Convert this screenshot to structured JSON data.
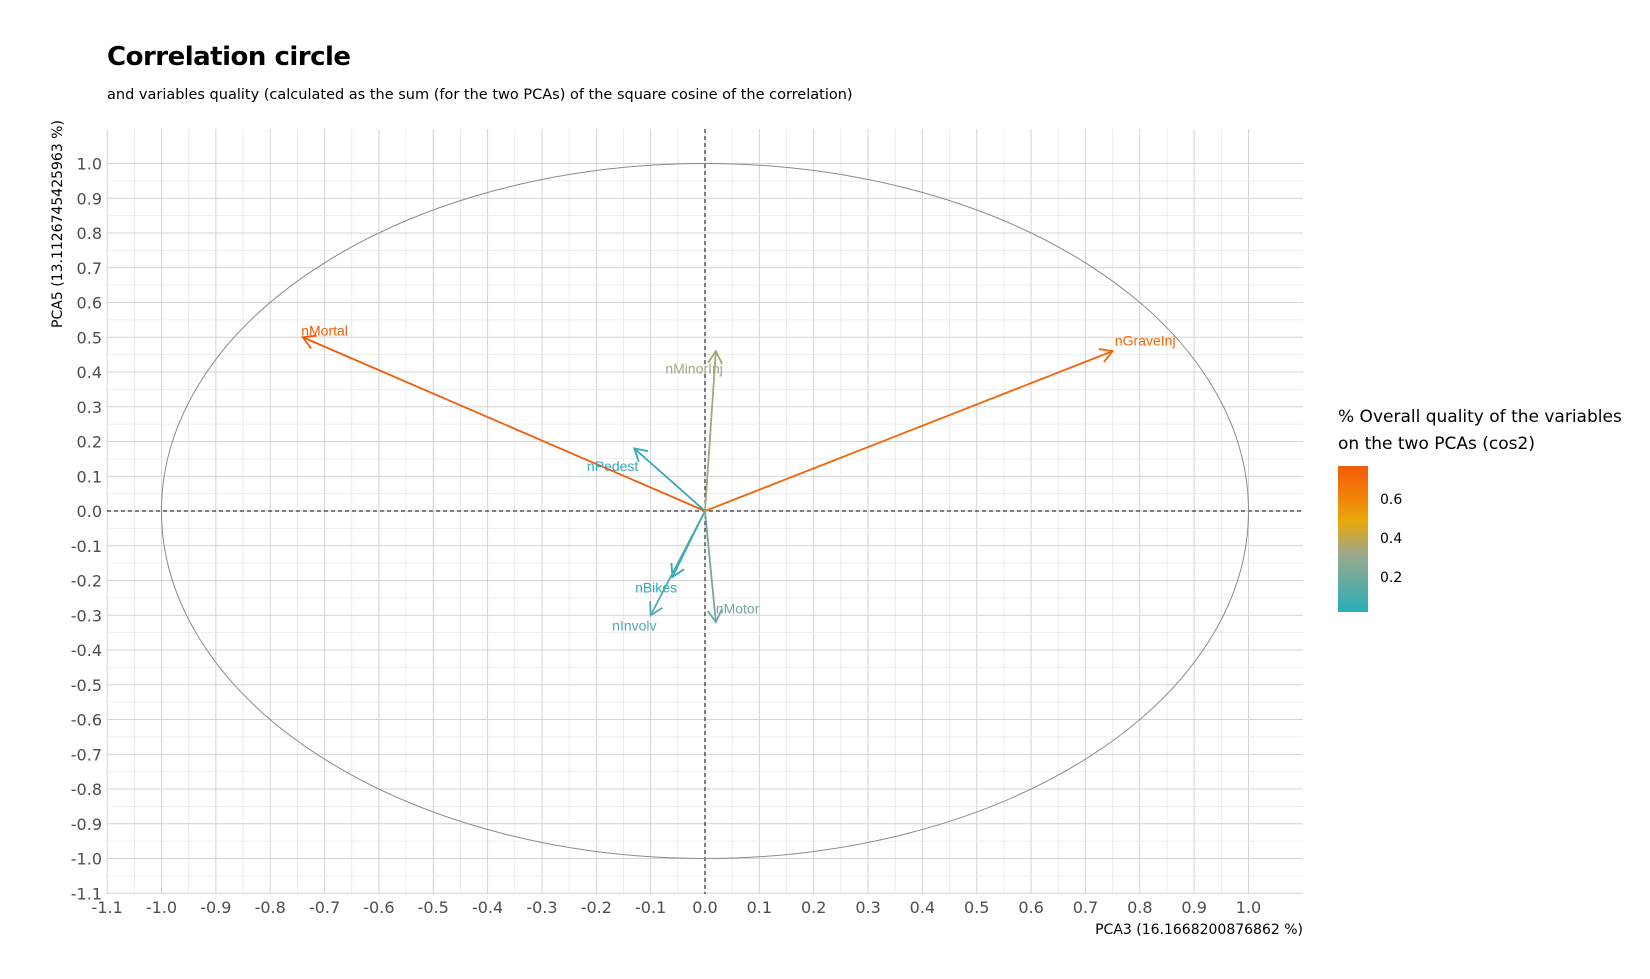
{
  "title": "Correlation circle",
  "subtitle": "and variables quality (calculated as the sum (for the two PCAs) of the square cosine of the correlation)",
  "chart_data": {
    "type": "scatter",
    "subtype": "correlation-circle",
    "xlabel": "PCA3 (16.1668200876862 %)",
    "ylabel": "PCA5 (13.1126745425963 %)",
    "xlim": [
      -1.1,
      1.1
    ],
    "ylim": [
      -1.1,
      1.1
    ],
    "x_ticks": [
      "-1.1",
      "-1.0",
      "-0.9",
      "-0.8",
      "-0.7",
      "-0.6",
      "-0.5",
      "-0.4",
      "-0.3",
      "-0.2",
      "-0.1",
      "0.0",
      "0.1",
      "0.2",
      "0.3",
      "0.4",
      "0.5",
      "0.6",
      "0.7",
      "0.8",
      "0.9",
      "1.0"
    ],
    "y_ticks": [
      "-1.1",
      "-1.0",
      "-0.9",
      "-0.8",
      "-0.7",
      "-0.6",
      "-0.5",
      "-0.4",
      "-0.3",
      "-0.2",
      "-0.1",
      "0.0",
      "0.1",
      "0.2",
      "0.3",
      "0.4",
      "0.5",
      "0.6",
      "0.7",
      "0.8",
      "0.9",
      "1.0"
    ],
    "grid": true,
    "unit_circle": true,
    "reference_lines": [
      "x=0",
      "y=0"
    ],
    "variables": [
      {
        "name": "nMortal",
        "x": -0.74,
        "y": 0.5,
        "cos2": 0.8,
        "color": "#F25B08",
        "label_x": -0.7,
        "label_y": 0.52
      },
      {
        "name": "nGraveInj",
        "x": 0.75,
        "y": 0.46,
        "cos2": 0.78,
        "color": "#F26508",
        "label_x": 0.81,
        "label_y": 0.49
      },
      {
        "name": "nMinorInj",
        "x": 0.02,
        "y": 0.46,
        "cos2": 0.21,
        "color": "#9FA87F",
        "label_x": -0.02,
        "label_y": 0.41
      },
      {
        "name": "nPedest",
        "x": -0.13,
        "y": 0.18,
        "cos2": 0.05,
        "color": "#35A9B4",
        "label_x": -0.17,
        "label_y": 0.13
      },
      {
        "name": "nBikes",
        "x": -0.06,
        "y": -0.19,
        "cos2": 0.04,
        "color": "#2CABB7",
        "label_x": -0.09,
        "label_y": -0.22
      },
      {
        "name": "nInvolv",
        "x": -0.1,
        "y": -0.3,
        "cos2": 0.09,
        "color": "#4FAAAF",
        "label_x": -0.13,
        "label_y": -0.33
      },
      {
        "name": "nMotor",
        "x": 0.02,
        "y": -0.32,
        "cos2": 0.1,
        "color": "#6FA9A2",
        "label_x": 0.06,
        "label_y": -0.28
      }
    ],
    "legend": {
      "title_lines": [
        "% Overall quality of the variables",
        "on the two PCAs (cos2)"
      ],
      "ticks": [
        "0.2",
        "0.4",
        "0.6"
      ],
      "position": "right"
    }
  }
}
